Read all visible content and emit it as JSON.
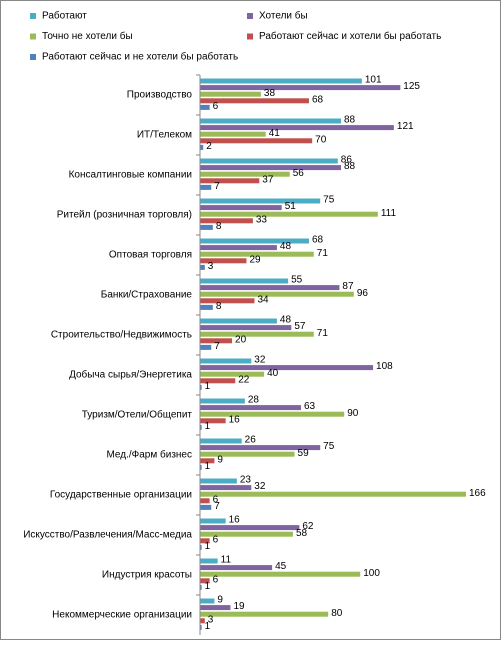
{
  "chart_data": {
    "type": "bar",
    "orientation": "horizontal",
    "categories": [
      "Производство",
      "ИТ/Телеком",
      "Консалтинговые компании",
      "Ритейл (розничная торговля)",
      "Оптовая торговля",
      "Банки/Страхование",
      "Строительство/Недвижимость",
      "Добыча сырья/Энергетика",
      "Туризм/Отели/Общепит",
      "Мед./Фарм бизнес",
      "Государственные организации",
      "Искусство/Развлечения/Масс-медиа",
      "Индустрия красоты",
      "Некоммерческие организации"
    ],
    "series": [
      {
        "name": "Работают",
        "color": "#4bacc6",
        "values": [
          101,
          88,
          86,
          75,
          68,
          55,
          48,
          32,
          28,
          26,
          23,
          16,
          11,
          9
        ]
      },
      {
        "name": "Хотели бы",
        "color": "#8064a2",
        "values": [
          125,
          121,
          88,
          51,
          48,
          87,
          57,
          108,
          63,
          75,
          32,
          62,
          45,
          19
        ]
      },
      {
        "name": "Точно не хотели бы",
        "color": "#9bbb59",
        "values": [
          38,
          41,
          56,
          111,
          71,
          96,
          71,
          40,
          90,
          59,
          166,
          58,
          100,
          80
        ]
      },
      {
        "name": "Работают сейчас и хотели бы работать",
        "color": "#c0504d",
        "values": [
          68,
          70,
          37,
          33,
          29,
          34,
          20,
          22,
          16,
          9,
          6,
          6,
          6,
          3
        ]
      },
      {
        "name": "Работают сейчас и не хотели бы работать",
        "color": "#4f81bd",
        "values": [
          6,
          2,
          7,
          8,
          3,
          8,
          7,
          1,
          1,
          1,
          7,
          1,
          1,
          1
        ]
      }
    ]
  }
}
